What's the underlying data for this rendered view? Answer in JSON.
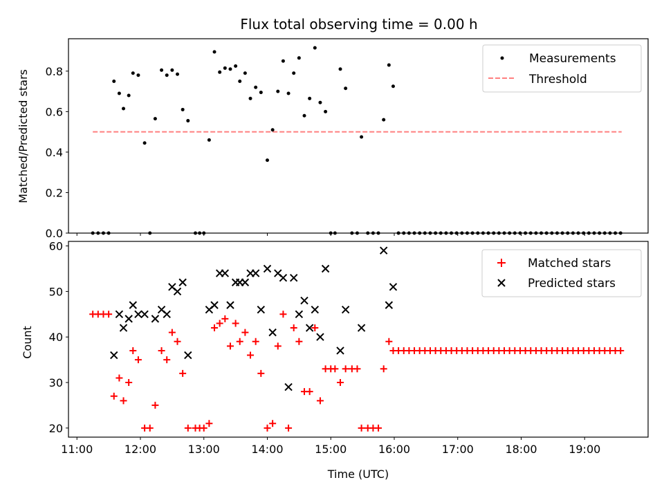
{
  "title": "Flux total observing time = 0.00 h",
  "colors": {
    "measure": "#000000",
    "threshold": "#ff7f7f",
    "matched": "#ff0000",
    "predicted": "#000000"
  },
  "chart_data": [
    {
      "type": "scatter",
      "title": "Flux total observing time = 0.00 h",
      "ylabel": "Matched/Predicted stars",
      "xlim": [
        "10:52",
        "20:00"
      ],
      "ylim": [
        0,
        0.96
      ],
      "yticks": [
        "0.0",
        "0.2",
        "0.4",
        "0.6",
        "0.8"
      ],
      "grid": false,
      "legend_position": "top-right",
      "series": [
        {
          "name": "Measurements",
          "marker": "dot",
          "color": "#000000",
          "points": [
            [
              "11:15",
              0
            ],
            [
              "11:20",
              0
            ],
            [
              "11:25",
              0
            ],
            [
              "11:30",
              0
            ],
            [
              "11:35",
              0.75
            ],
            [
              "11:40",
              0.69
            ],
            [
              "11:44",
              0.615
            ],
            [
              "11:49",
              0.68
            ],
            [
              "11:53",
              0.79
            ],
            [
              "11:58",
              0.78
            ],
            [
              "12:04",
              0.445
            ],
            [
              "12:09",
              0
            ],
            [
              "12:14",
              0.565
            ],
            [
              "12:20",
              0.805
            ],
            [
              "12:25",
              0.78
            ],
            [
              "12:30",
              0.805
            ],
            [
              "12:35",
              0.785
            ],
            [
              "12:40",
              0.61
            ],
            [
              "12:45",
              0.555
            ],
            [
              "12:52",
              0
            ],
            [
              "12:56",
              0
            ],
            [
              "13:00",
              0
            ],
            [
              "13:05",
              0.46
            ],
            [
              "13:10",
              0.895
            ],
            [
              "13:15",
              0.795
            ],
            [
              "13:20",
              0.815
            ],
            [
              "13:25",
              0.81
            ],
            [
              "13:30",
              0.825
            ],
            [
              "13:34",
              0.75
            ],
            [
              "13:39",
              0.79
            ],
            [
              "13:44",
              0.665
            ],
            [
              "13:49",
              0.72
            ],
            [
              "13:54",
              0.695
            ],
            [
              "14:00",
              0.36
            ],
            [
              "14:05",
              0.51
            ],
            [
              "14:10",
              0.7
            ],
            [
              "14:15",
              0.85
            ],
            [
              "14:20",
              0.69
            ],
            [
              "14:25",
              0.79
            ],
            [
              "14:30",
              0.865
            ],
            [
              "14:35",
              0.58
            ],
            [
              "14:40",
              0.665
            ],
            [
              "14:45",
              0.915
            ],
            [
              "14:50",
              0.645
            ],
            [
              "14:55",
              0.6
            ],
            [
              "15:00",
              0
            ],
            [
              "15:04",
              0
            ],
            [
              "15:09",
              0.81
            ],
            [
              "15:14",
              0.715
            ],
            [
              "15:20",
              0
            ],
            [
              "15:25",
              0
            ],
            [
              "15:29",
              0.475
            ],
            [
              "15:35",
              0
            ],
            [
              "15:40",
              0
            ],
            [
              "15:45",
              0
            ],
            [
              "15:50",
              0.56
            ],
            [
              "15:55",
              0.83
            ],
            [
              "15:59",
              0.725
            ]
          ],
          "points_after": {
            "from": "16:04",
            "to": "19:35",
            "step_minutes": 5,
            "value": 0
          }
        },
        {
          "name": "Threshold",
          "type": "line",
          "style": "dashed",
          "color": "#ff7f7f",
          "x": [
            "11:15",
            "19:35"
          ],
          "y": [
            0.5,
            0.5
          ]
        }
      ]
    },
    {
      "type": "scatter",
      "xlabel": "Time (UTC)",
      "ylabel": "Count",
      "xlim": [
        "10:52",
        "20:00"
      ],
      "ylim": [
        18,
        61
      ],
      "xticks": [
        "11:00",
        "12:00",
        "13:00",
        "14:00",
        "15:00",
        "16:00",
        "17:00",
        "18:00",
        "19:00"
      ],
      "yticks": [
        "20",
        "30",
        "40",
        "50",
        "60"
      ],
      "grid": false,
      "legend_position": "top-right",
      "series": [
        {
          "name": "Matched stars",
          "marker": "plus",
          "color": "#ff0000",
          "points": [
            [
              "11:15",
              45
            ],
            [
              "11:20",
              45
            ],
            [
              "11:25",
              45
            ],
            [
              "11:30",
              45
            ],
            [
              "11:35",
              27
            ],
            [
              "11:40",
              31
            ],
            [
              "11:44",
              26
            ],
            [
              "11:49",
              30
            ],
            [
              "11:53",
              37
            ],
            [
              "11:58",
              35
            ],
            [
              "12:04",
              20
            ],
            [
              "12:09",
              20
            ],
            [
              "12:14",
              25
            ],
            [
              "12:20",
              37
            ],
            [
              "12:25",
              35
            ],
            [
              "12:30",
              41
            ],
            [
              "12:35",
              39
            ],
            [
              "12:40",
              32
            ],
            [
              "12:45",
              20
            ],
            [
              "12:52",
              20
            ],
            [
              "12:56",
              20
            ],
            [
              "13:00",
              20
            ],
            [
              "13:05",
              21
            ],
            [
              "13:10",
              42
            ],
            [
              "13:15",
              43
            ],
            [
              "13:20",
              44
            ],
            [
              "13:25",
              38
            ],
            [
              "13:30",
              43
            ],
            [
              "13:34",
              39
            ],
            [
              "13:39",
              41
            ],
            [
              "13:44",
              36
            ],
            [
              "13:49",
              39
            ],
            [
              "13:54",
              32
            ],
            [
              "14:00",
              20
            ],
            [
              "14:05",
              21
            ],
            [
              "14:10",
              38
            ],
            [
              "14:15",
              45
            ],
            [
              "14:20",
              20
            ],
            [
              "14:25",
              42
            ],
            [
              "14:30",
              39
            ],
            [
              "14:35",
              28
            ],
            [
              "14:40",
              28
            ],
            [
              "14:45",
              42
            ],
            [
              "14:50",
              26
            ],
            [
              "14:55",
              33
            ],
            [
              "15:00",
              33
            ],
            [
              "15:04",
              33
            ],
            [
              "15:09",
              30
            ],
            [
              "15:14",
              33
            ],
            [
              "15:20",
              33
            ],
            [
              "15:25",
              33
            ],
            [
              "15:29",
              20
            ],
            [
              "15:35",
              20
            ],
            [
              "15:40",
              20
            ],
            [
              "15:45",
              20
            ],
            [
              "15:50",
              33
            ],
            [
              "15:55",
              39
            ],
            [
              "15:59",
              37
            ]
          ],
          "points_after": {
            "from": "16:04",
            "to": "19:35",
            "step_minutes": 5,
            "value": 37
          }
        },
        {
          "name": "Predicted stars",
          "marker": "x",
          "color": "#000000",
          "points": [
            [
              "11:35",
              36
            ],
            [
              "11:40",
              45
            ],
            [
              "11:44",
              42
            ],
            [
              "11:49",
              44
            ],
            [
              "11:53",
              47
            ],
            [
              "11:58",
              45
            ],
            [
              "12:04",
              45
            ],
            [
              "12:14",
              44
            ],
            [
              "12:20",
              46
            ],
            [
              "12:25",
              45
            ],
            [
              "12:30",
              51
            ],
            [
              "12:35",
              50
            ],
            [
              "12:40",
              52
            ],
            [
              "12:45",
              36
            ],
            [
              "13:05",
              46
            ],
            [
              "13:10",
              47
            ],
            [
              "13:15",
              54
            ],
            [
              "13:20",
              54
            ],
            [
              "13:25",
              47
            ],
            [
              "13:30",
              52
            ],
            [
              "13:34",
              52
            ],
            [
              "13:39",
              52
            ],
            [
              "13:44",
              54
            ],
            [
              "13:49",
              54
            ],
            [
              "13:54",
              46
            ],
            [
              "14:00",
              55
            ],
            [
              "14:05",
              41
            ],
            [
              "14:10",
              54
            ],
            [
              "14:15",
              53
            ],
            [
              "14:20",
              29
            ],
            [
              "14:25",
              53
            ],
            [
              "14:30",
              45
            ],
            [
              "14:35",
              48
            ],
            [
              "14:40",
              42
            ],
            [
              "14:45",
              46
            ],
            [
              "14:50",
              40
            ],
            [
              "14:55",
              55
            ],
            [
              "15:09",
              37
            ],
            [
              "15:14",
              46
            ],
            [
              "15:29",
              42
            ],
            [
              "15:50",
              59
            ],
            [
              "15:55",
              47
            ],
            [
              "15:59",
              51
            ]
          ]
        }
      ]
    }
  ]
}
